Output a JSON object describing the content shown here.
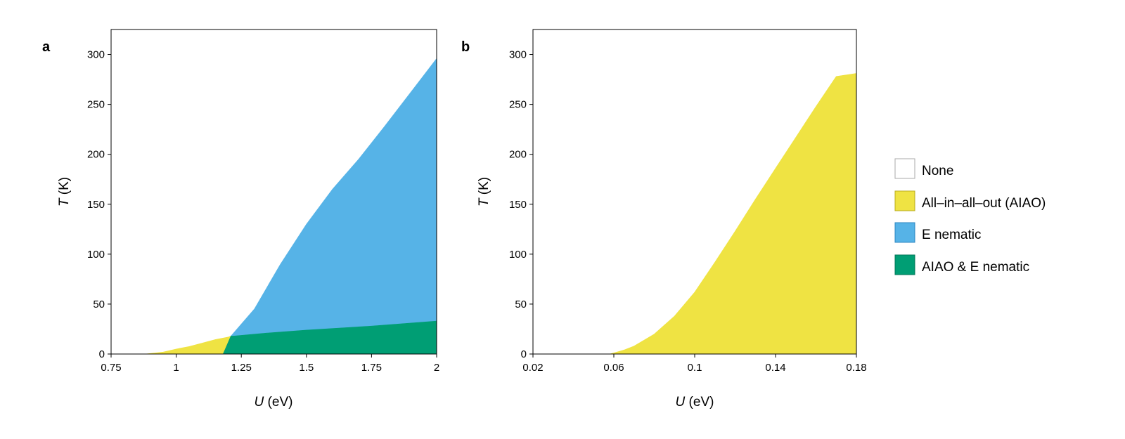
{
  "panels": [
    {
      "label": "a",
      "xlabel": {
        "var": "U",
        "unit": " (eV)"
      },
      "ylabel": {
        "var": "T",
        "unit": " (K)"
      }
    },
    {
      "label": "b",
      "xlabel": {
        "var": "U",
        "unit": " (eV)"
      },
      "ylabel": {
        "var": "T",
        "unit": " (K)"
      }
    }
  ],
  "legend": {
    "placement": "right",
    "items": [
      {
        "label": "None",
        "color": "#ffffff"
      },
      {
        "label": "All–in–all–out (AIAO)",
        "color": "#efe343"
      },
      {
        "label": "E nematic",
        "color": "#56b3e7"
      },
      {
        "label": "AIAO & E nematic",
        "color": "#009e74"
      }
    ]
  },
  "chart_data": [
    {
      "type": "area",
      "title": "",
      "xlabel": "U (eV)",
      "ylabel": "T (K)",
      "xlim": [
        0.75,
        2
      ],
      "ylim": [
        0,
        325
      ],
      "xticks": [
        0.75,
        1,
        1.25,
        1.5,
        1.75,
        2
      ],
      "xtick_labels": [
        "0.75",
        "1",
        "1.25",
        "1.5",
        "1.75",
        "2"
      ],
      "yticks": [
        0,
        50,
        100,
        150,
        200,
        250,
        300
      ],
      "ytick_labels": [
        "0",
        "50",
        "100",
        "150",
        "200",
        "250",
        "300"
      ],
      "grid": false,
      "regions": [
        {
          "name": "All–in–all–out (AIAO)",
          "color": "#efe343",
          "polygon": [
            [
              0.88,
              0
            ],
            [
              0.95,
              2
            ],
            [
              1.0,
              5
            ],
            [
              1.05,
              7.5
            ],
            [
              1.1,
              11
            ],
            [
              1.15,
              14.5
            ],
            [
              1.2,
              17
            ],
            [
              1.21,
              18
            ],
            [
              1.18,
              0
            ]
          ]
        },
        {
          "name": "E nematic",
          "color": "#56b3e7",
          "polygon": [
            [
              1.21,
              18
            ],
            [
              1.3,
              45
            ],
            [
              1.4,
              90
            ],
            [
              1.5,
              130
            ],
            [
              1.6,
              165
            ],
            [
              1.7,
              195
            ],
            [
              1.8,
              228
            ],
            [
              1.9,
              262
            ],
            [
              2.0,
              296
            ],
            [
              2.0,
              33
            ],
            [
              1.75,
              28
            ],
            [
              1.5,
              24
            ],
            [
              1.35,
              21
            ],
            [
              1.22,
              18
            ]
          ]
        },
        {
          "name": "AIAO & E nematic",
          "color": "#009e74",
          "polygon": [
            [
              1.18,
              0
            ],
            [
              1.21,
              18
            ],
            [
              1.22,
              18
            ],
            [
              1.35,
              21
            ],
            [
              1.5,
              24
            ],
            [
              1.75,
              28
            ],
            [
              2.0,
              33
            ],
            [
              2.0,
              0
            ]
          ]
        }
      ]
    },
    {
      "type": "area",
      "title": "",
      "xlabel": "U (eV)",
      "ylabel": "T (K)",
      "xlim": [
        0.02,
        0.18
      ],
      "ylim": [
        0,
        325
      ],
      "xticks": [
        0.02,
        0.06,
        0.1,
        0.14,
        0.18
      ],
      "xtick_labels": [
        "0.02",
        "0.06",
        "0.1",
        "0.14",
        "0.18"
      ],
      "yticks": [
        0,
        50,
        100,
        150,
        200,
        250,
        300
      ],
      "ytick_labels": [
        "0",
        "50",
        "100",
        "150",
        "200",
        "250",
        "300"
      ],
      "grid": false,
      "regions": [
        {
          "name": "All–in–all–out (AIAO)",
          "color": "#efe343",
          "polygon": [
            [
              0.058,
              0
            ],
            [
              0.065,
              4
            ],
            [
              0.07,
              8
            ],
            [
              0.08,
              20
            ],
            [
              0.09,
              38
            ],
            [
              0.1,
              62
            ],
            [
              0.11,
              92
            ],
            [
              0.12,
              123
            ],
            [
              0.13,
              155
            ],
            [
              0.14,
              186
            ],
            [
              0.15,
              217
            ],
            [
              0.16,
              248
            ],
            [
              0.17,
              278
            ],
            [
              0.18,
              281
            ],
            [
              0.18,
              0
            ]
          ]
        }
      ]
    }
  ]
}
